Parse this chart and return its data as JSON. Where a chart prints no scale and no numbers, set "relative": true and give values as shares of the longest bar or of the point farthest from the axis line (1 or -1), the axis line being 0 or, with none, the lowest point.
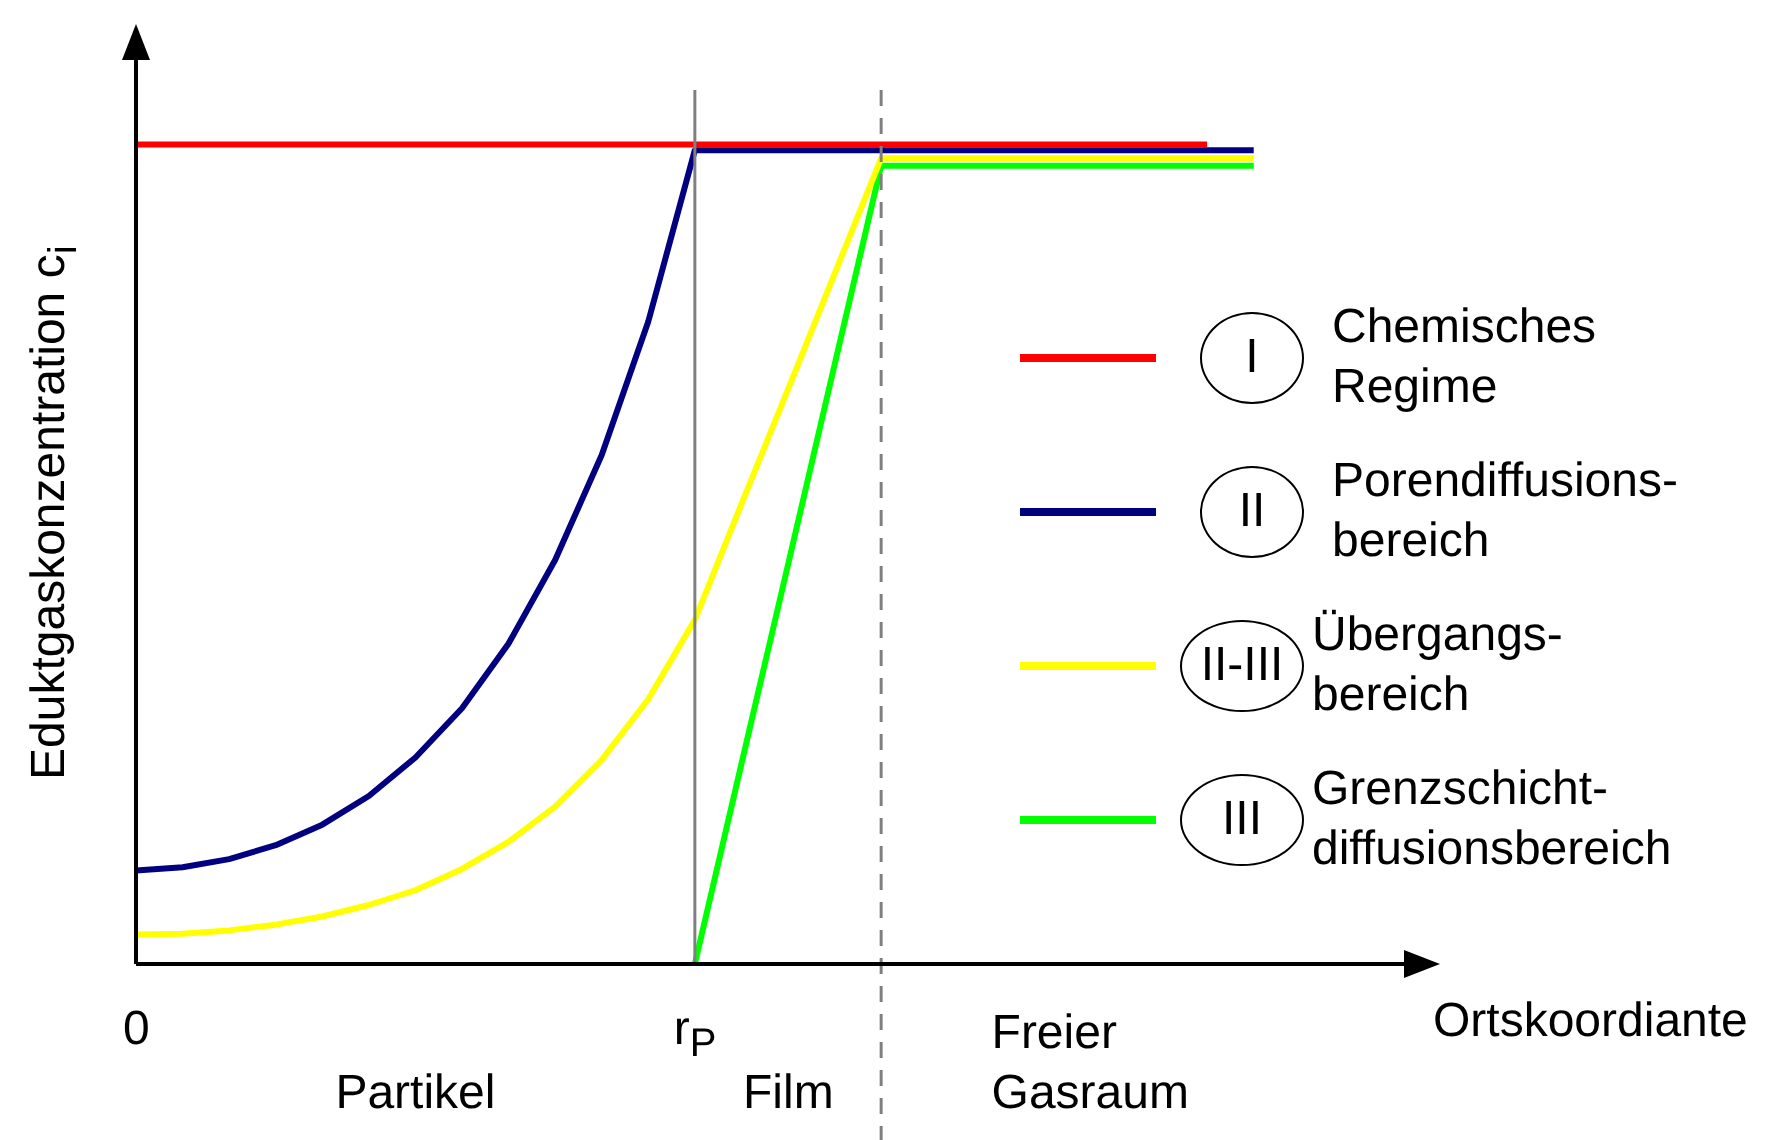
{
  "chart_data": {
    "type": "line",
    "relative": true,
    "ylabel": "Eduktgaskonzentration c$_{i}$",
    "xlabel": "Ortskoordiante",
    "categories": [
      "0",
      null,
      null,
      null,
      null,
      null,
      null,
      null,
      null,
      null,
      null,
      null,
      "r$_{P}$",
      null,
      null,
      null,
      null,
      null,
      null,
      null,
      null,
      null,
      null,
      null,
      null,
      null,
      null,
      null,
      null
    ],
    "legend": "right",
    "marker": "none",
    "line_style": "solid",
    "ref_lines": [
      {
        "axis": "x",
        "value": "r$_{P}$",
        "color": "#808080",
        "line_style": "solid"
      }
    ],
    "annotations": [
      "I",
      "II",
      "II-III",
      "III",
      "Partikel",
      "Film",
      "Freier\nGasraum"
    ],
    "series": [
      {
        "name": "Chemisches\nRegime",
        "color": "#ff0000",
        "values": [
          1,
          1,
          1,
          1,
          1,
          1,
          1,
          1,
          1,
          1,
          1,
          1,
          1,
          1,
          1,
          1,
          1,
          1,
          1,
          1,
          1,
          1,
          1,
          1,
          null,
          null,
          null,
          null,
          null
        ]
      },
      {
        "name": "Porendiffusions-\nbereich",
        "color": "#000080",
        "values": [
          0.114,
          0.118,
          0.128,
          0.145,
          0.17,
          0.205,
          0.252,
          0.312,
          0.391,
          0.493,
          0.621,
          0.784,
          0.993,
          0.993,
          0.993,
          0.993,
          0.993,
          0.993,
          0.993,
          0.993,
          0.993,
          0.993,
          0.993,
          0.993,
          0.993,
          null,
          null,
          null,
          null
        ]
      },
      {
        "name": "Übergangs-\nbereich",
        "color": "#ffff00",
        "values": [
          0.036,
          0.037,
          0.041,
          0.048,
          0.058,
          0.072,
          0.09,
          0.116,
          0.149,
          0.192,
          0.249,
          0.323,
          0.42,
          0.561,
          0.701,
          0.842,
          0.983,
          0.983,
          0.983,
          0.983,
          0.983,
          0.983,
          0.983,
          0.983,
          0.983,
          null,
          null,
          null,
          null
        ]
      },
      {
        "name": "Grenzschicht-\ndiffusionsbereich",
        "color": "#00ff00",
        "values": [
          null,
          null,
          null,
          null,
          null,
          null,
          null,
          null,
          null,
          null,
          null,
          null,
          0,
          0.244,
          0.487,
          0.731,
          0.974,
          0.974,
          0.974,
          0.974,
          0.974,
          0.974,
          0.974,
          0.974,
          0.974,
          null,
          null,
          null,
          null
        ]
      }
    ]
  }
}
